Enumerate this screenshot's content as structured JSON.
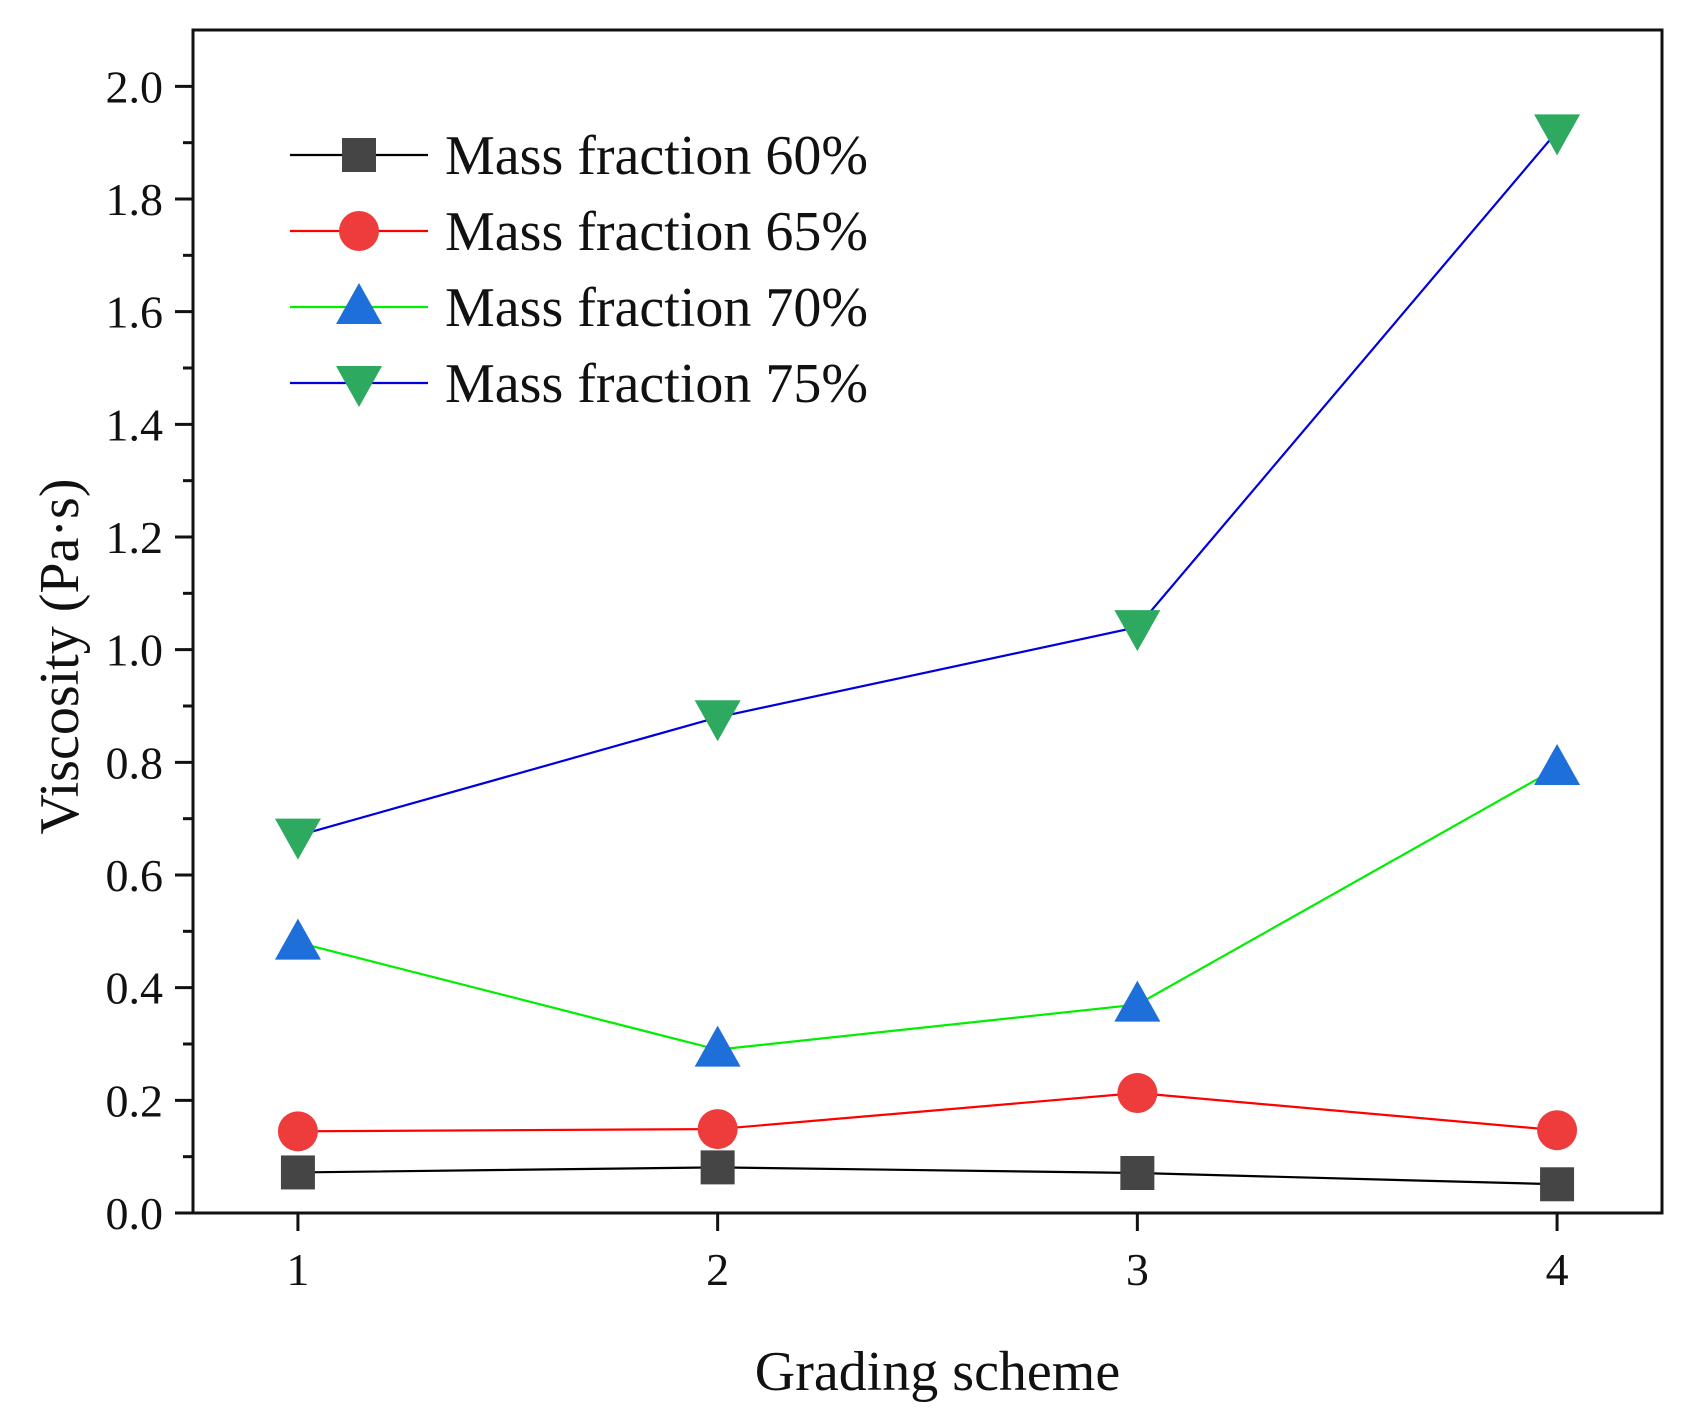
{
  "chart_data": {
    "type": "line",
    "xlabel": "Grading scheme",
    "ylabel": "Viscosity (Pa·s)",
    "xlim": [
      0.75,
      4.25
    ],
    "ylim": [
      0.0,
      2.1
    ],
    "x": [
      1,
      2,
      3,
      4
    ],
    "xticks": [
      "1",
      "2",
      "3",
      "4"
    ],
    "yticks": [
      "0.0",
      "0.2",
      "0.4",
      "0.6",
      "0.8",
      "1.0",
      "1.2",
      "1.4",
      "1.6",
      "1.8",
      "2.0"
    ],
    "legend_position": "top-left",
    "series": [
      {
        "name": "Mass fraction 60%",
        "values": [
          0.072,
          0.081,
          0.071,
          0.051
        ],
        "marker": "square",
        "line_color": "#000000",
        "marker_color": "#454545"
      },
      {
        "name": "Mass fraction 65%",
        "values": [
          0.145,
          0.149,
          0.213,
          0.147
        ],
        "marker": "circle",
        "line_color": "#ff0000",
        "marker_color": "#ee3b3b"
      },
      {
        "name": "Mass fraction 70%",
        "values": [
          0.48,
          0.29,
          0.37,
          0.79
        ],
        "marker": "triangle-up",
        "line_color": "#00ee00",
        "marker_color": "#1e6fd9"
      },
      {
        "name": "Mass fraction 75%",
        "values": [
          0.67,
          0.88,
          1.04,
          1.92
        ],
        "marker": "triangle-down",
        "line_color": "#0000dd",
        "marker_color": "#2eaa60"
      }
    ]
  }
}
